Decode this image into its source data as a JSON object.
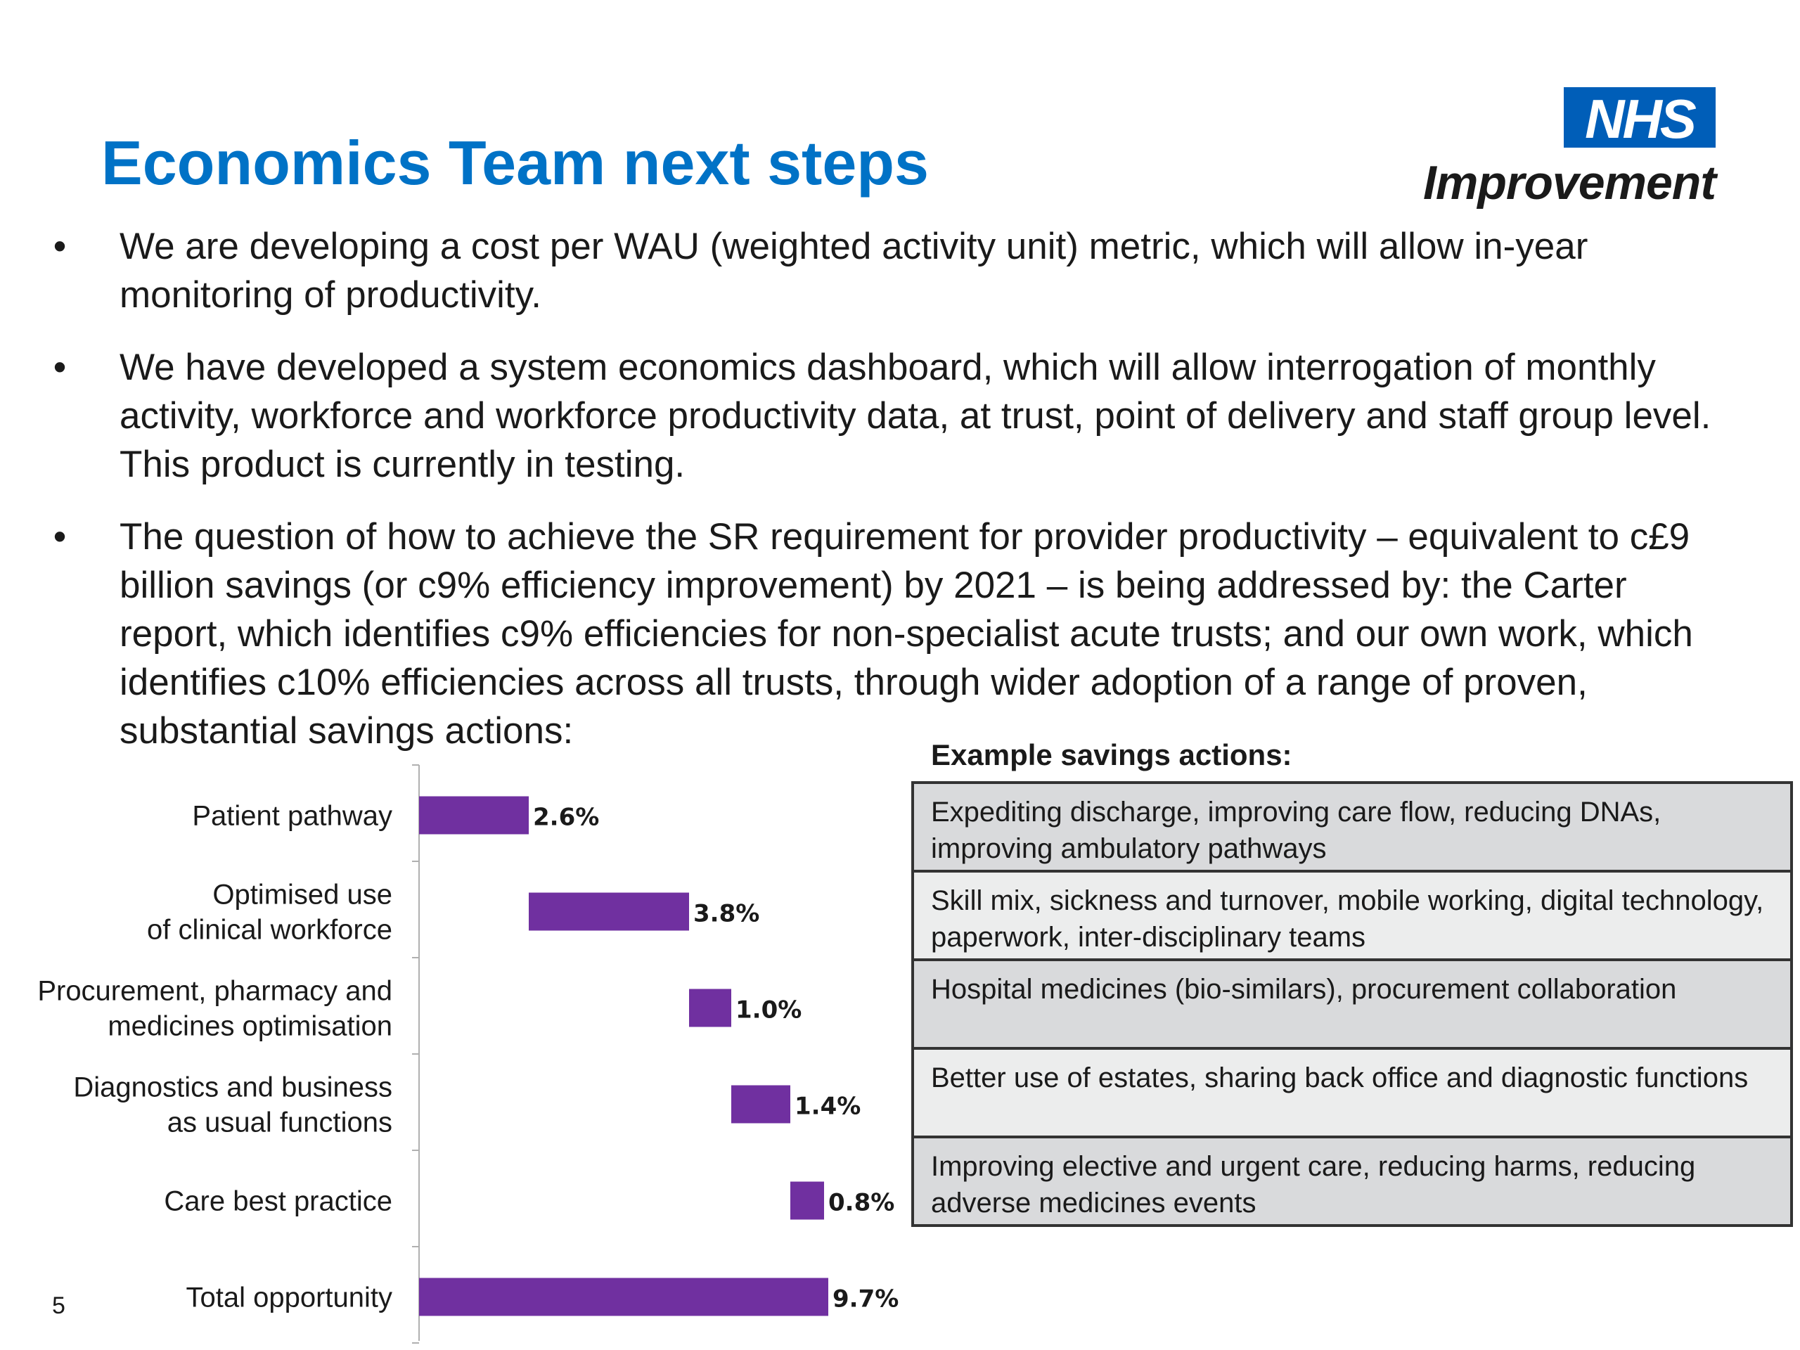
{
  "slide": {
    "title": "Economics Team next steps",
    "page_number": "5"
  },
  "logo": {
    "box_text": "NHS",
    "subtext": "Improvement",
    "brand_color": "#005eb8"
  },
  "bullets": [
    "We are developing a cost per WAU (weighted activity unit) metric, which will allow in-year monitoring of productivity.",
    "We have developed a system economics dashboard, which will allow interrogation of monthly activity, workforce and workforce productivity data, at trust, point of delivery and staff group level. This product is currently in testing.",
    "The question of how to achieve the SR requirement for provider productivity – equivalent to c£9 billion savings (or c9% efficiency improvement) by 2021 – is being addressed by: the Carter report, which identifies c9% efficiencies for non-specialist acute trusts; and our own work, which identifies c10% efficiencies across all trusts, through wider adoption of a range of proven, substantial savings actions:"
  ],
  "chart_data": {
    "type": "bar",
    "orientation": "horizontal",
    "subtype": "waterfall",
    "categories": [
      [
        "Patient pathway"
      ],
      [
        "Optimised use",
        "of clinical workforce"
      ],
      [
        "Procurement, pharmacy and",
        "medicines optimisation"
      ],
      [
        "Diagnostics and business",
        "as usual functions"
      ],
      [
        "Care best practice"
      ],
      [
        "Total opportunity"
      ]
    ],
    "values": [
      2.6,
      3.8,
      1.0,
      1.4,
      0.8,
      9.7
    ],
    "starts": [
      0,
      2.6,
      6.4,
      7.4,
      8.8,
      0
    ],
    "value_labels": [
      "2.6%",
      "3.8%",
      "1.0%",
      "1.4%",
      "0.8%",
      "9.7%"
    ],
    "bar_color": "#7030a0",
    "xlim": [
      0,
      11
    ],
    "grid": false,
    "legend": "none"
  },
  "savings_table": {
    "title": "Example savings actions:",
    "rows": [
      "Expediting discharge, improving care flow, reducing DNAs, improving ambulatory pathways",
      "Skill mix, sickness and turnover, mobile working, digital technology, paperwork, inter-disciplinary teams",
      "Hospital medicines (bio-similars), procurement collaboration",
      "Better use of estates, sharing back office and diagnostic functions",
      "Improving elective and urgent care, reducing harms, reducing adverse medicines events"
    ]
  }
}
